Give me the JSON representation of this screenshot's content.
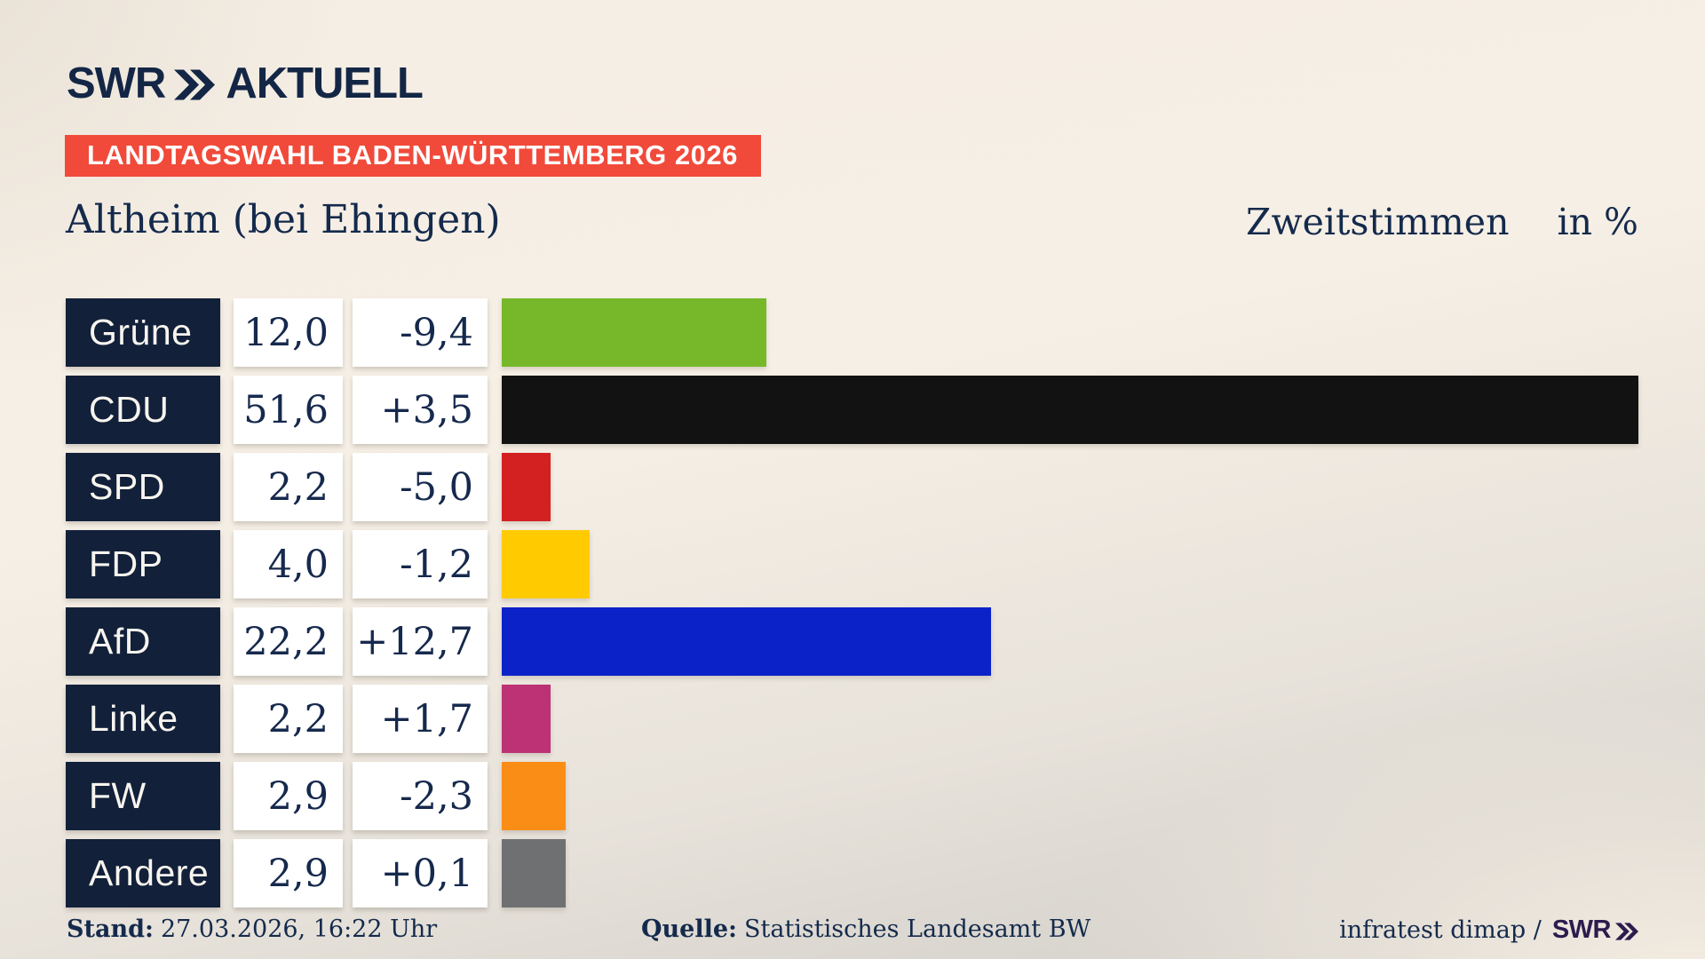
{
  "header": {
    "logo_swr": "SWR",
    "logo_aktuell": "AKTUELL",
    "banner": "LANDTAGSWAHL BADEN-WÜRTTEMBERG 2026"
  },
  "title": {
    "region": "Altheim (bei Ehingen)",
    "measure": "Zweitstimmen",
    "unit": "in %"
  },
  "footer": {
    "stand_label": "Stand:",
    "stand_value": "27.03.2026, 16:22 Uhr",
    "quelle_label": "Quelle:",
    "quelle_value": "Statistisches Landesamt BW",
    "credit_text": "infratest dimap /",
    "credit_logo": "SWR"
  },
  "colors": {
    "navy_box": "#12203a",
    "navy_text": "#152a4d",
    "banner_red": "#f14a3a",
    "background_beige": "#f5eee4",
    "background_gray": "#d0cdc8",
    "footer_logo_purple": "#2b1c4e"
  },
  "chart_data": {
    "type": "bar",
    "orientation": "horizontal",
    "title": "Altheim (bei Ehingen)",
    "value_header": "Zweitstimmen",
    "unit": "in %",
    "xlabel": "",
    "ylabel": "",
    "axis_max": 51.6,
    "grid": false,
    "legend": false,
    "categories": [
      "Grüne",
      "CDU",
      "SPD",
      "FDP",
      "AfD",
      "Linke",
      "FW",
      "Andere"
    ],
    "values": [
      12.0,
      51.6,
      2.2,
      4.0,
      22.2,
      2.2,
      2.9,
      2.9
    ],
    "value_labels": [
      "12,0",
      "51,6",
      "2,2",
      "4,0",
      "22,2",
      "2,2",
      "2,9",
      "2,9"
    ],
    "diffs": [
      -9.4,
      3.5,
      -5.0,
      -1.2,
      12.7,
      1.7,
      -2.3,
      0.1
    ],
    "diff_labels": [
      "-9,4",
      "+3,5",
      "-5,0",
      "-1,2",
      "+12,7",
      "+1,7",
      "-2,3",
      "+0,1"
    ],
    "bar_colors": [
      "#76b82a",
      "#121212",
      "#d32020",
      "#ffcb00",
      "#0b22c8",
      "#bc3274",
      "#fa8d15",
      "#6f7072"
    ]
  }
}
